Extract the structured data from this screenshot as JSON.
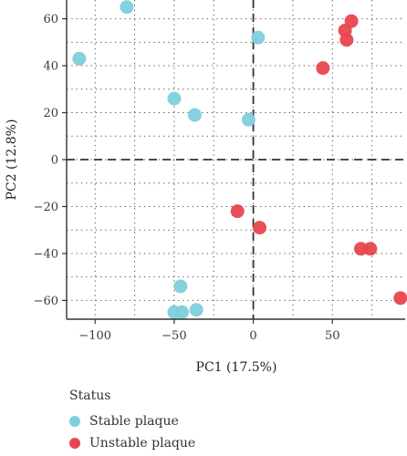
{
  "chart_data": {
    "type": "scatter",
    "xlabel": "PC1 (17.5%)",
    "ylabel": "PC2 (12.8%)",
    "xlim": [
      -118,
      96
    ],
    "ylim": [
      -68,
      68
    ],
    "x_ticks": [
      -100,
      -50,
      0,
      50
    ],
    "y_ticks": [
      -60,
      -40,
      -20,
      0,
      20,
      40,
      60
    ],
    "x_tick_labels": [
      "−100",
      "−50",
      "0",
      "50"
    ],
    "y_tick_labels": [
      "−60",
      "−40",
      "−20",
      "0",
      "20",
      "40",
      "60"
    ],
    "grid": "dotted",
    "reference_lines": {
      "x": 0,
      "y": 0,
      "style": "dashed"
    },
    "legend": {
      "title": "Status",
      "position": "bottom-left"
    },
    "series": [
      {
        "name": "Stable plaque",
        "color": "#7ecfdc",
        "points": [
          [
            -80,
            65
          ],
          [
            -110,
            43
          ],
          [
            3,
            52
          ],
          [
            -50,
            26
          ],
          [
            -37,
            19
          ],
          [
            -3,
            17
          ],
          [
            -46,
            -54
          ],
          [
            -50,
            -65
          ],
          [
            -45,
            -65
          ],
          [
            -36,
            -64
          ]
        ]
      },
      {
        "name": "Unstable plaque",
        "color": "#e8464e",
        "points": [
          [
            62,
            59
          ],
          [
            58,
            55
          ],
          [
            59,
            51
          ],
          [
            44,
            39
          ],
          [
            -10,
            -22
          ],
          [
            4,
            -29
          ],
          [
            68,
            -38
          ],
          [
            74,
            -38
          ],
          [
            93,
            -59
          ]
        ]
      }
    ]
  }
}
